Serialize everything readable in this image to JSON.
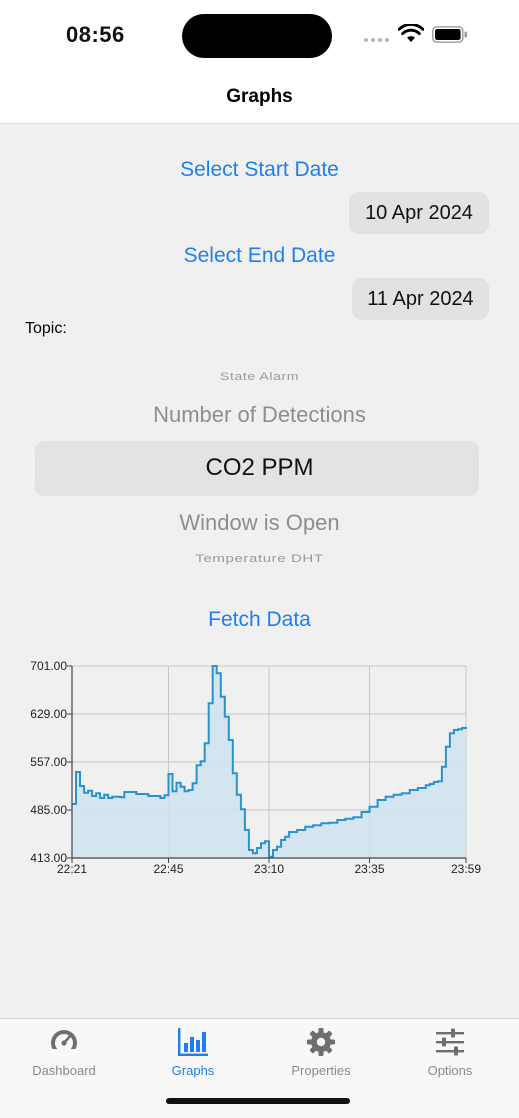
{
  "status": {
    "time": "08:56"
  },
  "nav": {
    "title": "Graphs"
  },
  "start": {
    "label": "Select Start Date",
    "value": "10 Apr 2024"
  },
  "end": {
    "label": "Select End Date",
    "value": "11 Apr 2024"
  },
  "topic": {
    "label": "Topic:",
    "options": [
      "State Alarm",
      "Number of Detections",
      "CO2 PPM",
      "Window is Open",
      "Temperature DHT"
    ],
    "selected": "CO2 PPM"
  },
  "fetch": {
    "label": "Fetch Data"
  },
  "colors": {
    "accent": "#1f7ff0",
    "line": "#2a93cf",
    "fill": "#cfe3ef"
  },
  "chart_data": {
    "type": "line",
    "y_ticks": [
      "413.00",
      "485.00",
      "557.00",
      "629.00",
      "701.00"
    ],
    "x_ticks": [
      "22:21",
      "22:45",
      "23:10",
      "23:35",
      "23:59"
    ],
    "ylim": [
      413,
      701
    ],
    "xlim": [
      "22:21",
      "23:59"
    ],
    "grid": true,
    "series": [
      {
        "x": [
          "22:21",
          "22:22",
          "22:23",
          "22:24",
          "22:25",
          "22:26",
          "22:27",
          "22:28",
          "22:29",
          "22:30",
          "22:31",
          "22:32",
          "22:33",
          "22:34",
          "22:37",
          "22:40",
          "22:43",
          "22:44",
          "22:45",
          "22:46",
          "22:47",
          "22:48",
          "22:49",
          "22:50",
          "22:51",
          "22:52",
          "22:53",
          "22:54",
          "22:55",
          "22:56",
          "22:57",
          "22:58",
          "22:59",
          "23:00",
          "23:01",
          "23:02",
          "23:03",
          "23:04",
          "23:05",
          "23:06",
          "23:07",
          "23:08",
          "23:09",
          "23:10",
          "23:11",
          "23:12",
          "23:13",
          "23:14",
          "23:15",
          "23:17",
          "23:19",
          "23:21",
          "23:23",
          "23:25",
          "23:27",
          "23:29",
          "23:31",
          "23:33",
          "23:35",
          "23:37",
          "23:39",
          "23:41",
          "23:43",
          "23:45",
          "23:47",
          "23:49",
          "23:50",
          "23:51",
          "23:52",
          "23:53",
          "23:54",
          "23:55",
          "23:56",
          "23:57",
          "23:58",
          "23:59"
        ],
        "y": [
          494,
          542,
          521,
          511,
          514,
          506,
          510,
          503,
          508,
          503,
          505,
          505,
          504,
          512,
          509,
          506,
          503,
          507,
          539,
          513,
          526,
          520,
          513,
          515,
          525,
          552,
          558,
          585,
          645,
          701,
          690,
          655,
          625,
          590,
          540,
          508,
          486,
          455,
          425,
          420,
          428,
          435,
          438,
          415,
          425,
          430,
          440,
          445,
          452,
          455,
          460,
          462,
          465,
          466,
          470,
          472,
          474,
          482,
          490,
          500,
          505,
          508,
          510,
          515,
          518,
          522,
          524,
          527,
          528,
          550,
          580,
          600,
          605,
          606,
          608,
          610
        ]
      }
    ]
  },
  "tabs": [
    {
      "label": "Dashboard",
      "icon": "gauge-icon"
    },
    {
      "label": "Graphs",
      "icon": "chart-bar-icon"
    },
    {
      "label": "Properties",
      "icon": "gear-icon"
    },
    {
      "label": "Options",
      "icon": "sliders-icon"
    }
  ]
}
